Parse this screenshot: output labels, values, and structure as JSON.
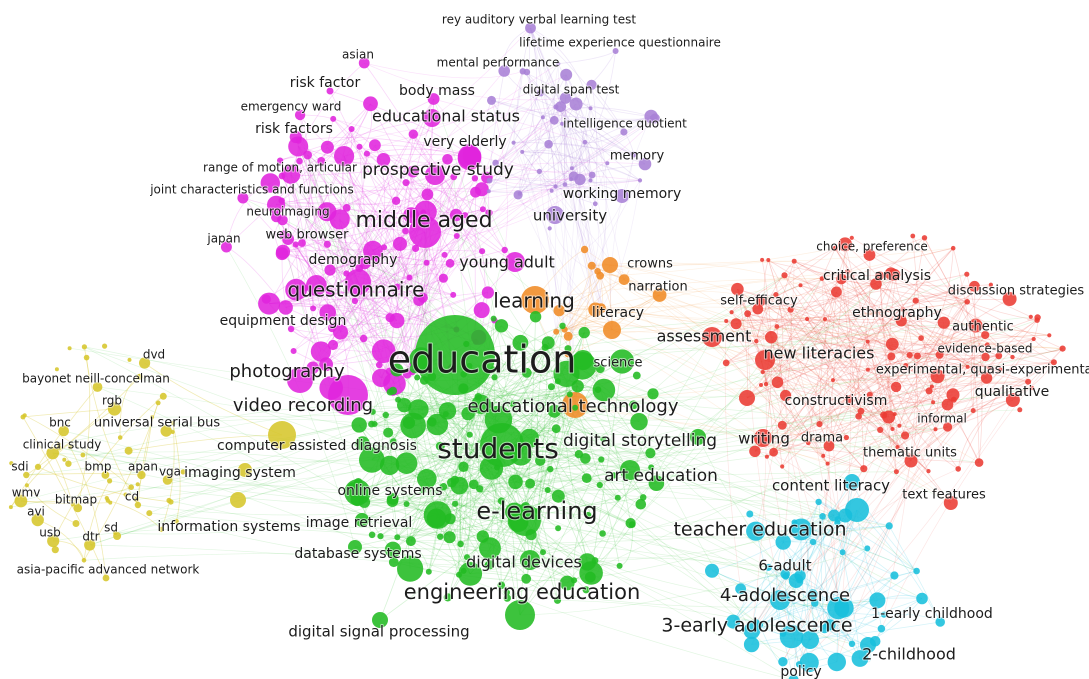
{
  "clusters": [
    {
      "name": "magenta",
      "color": "#e024dd",
      "terms": [
        "asian",
        "risk factor",
        "body mass",
        "emergency ward",
        "risk factors",
        "educational status",
        "very elderly",
        "range of motion, articular",
        "prospective study",
        "joint characteristics and functions",
        "middle aged",
        "neuroimaging",
        "web browser",
        "japan",
        "demography",
        "young adult",
        "questionnaire",
        "equipment design",
        "photography",
        "video recording"
      ]
    },
    {
      "name": "purple",
      "color": "#a981d6",
      "terms": [
        "rey auditory verbal learning test",
        "lifetime experience questionnaire",
        "mental performance",
        "digital span test",
        "intelligence quotient",
        "memory",
        "working memory",
        "university"
      ]
    },
    {
      "name": "orange",
      "color": "#f08b25",
      "terms": [
        "crowns",
        "narration",
        "literacy",
        "learning",
        "educational technology"
      ]
    },
    {
      "name": "green",
      "color": "#22bb22",
      "terms": [
        "education",
        "students",
        "digital storytelling",
        "art education",
        "e-learning",
        "online systems",
        "image retrieval",
        "database systems",
        "digital devices",
        "engineering education",
        "digital signal processing",
        "science"
      ]
    },
    {
      "name": "red",
      "color": "#ea3b33",
      "terms": [
        "choice, preference",
        "critical analysis",
        "discussion strategies",
        "self-efficacy",
        "ethnography",
        "assessment",
        "authentic",
        "new literacies",
        "evidence-based",
        "experimental, quasi-experimental",
        "qualitative",
        "constructivism",
        "informal",
        "writing",
        "drama",
        "thematic units",
        "text features"
      ]
    },
    {
      "name": "cyan",
      "color": "#18bfdc",
      "terms": [
        "content literacy",
        "teacher education",
        "6-adult",
        "4-adolescence",
        "1-early childhood",
        "3-early adolescence",
        "2-childhood",
        "policy"
      ]
    },
    {
      "name": "yellow",
      "color": "#d6c62b",
      "terms": [
        "dvd",
        "bayonet neill-concelman",
        "rgb",
        "bnc",
        "universal serial bus",
        "clinical study",
        "apan",
        "computer assisted diagnosis",
        "sdi",
        "bmp",
        "vga",
        "imaging system",
        "wmv",
        "bitmap",
        "cd",
        "avi",
        "usb",
        "sd",
        "dtr",
        "information systems",
        "asia-pacific advanced network"
      ]
    }
  ]
}
